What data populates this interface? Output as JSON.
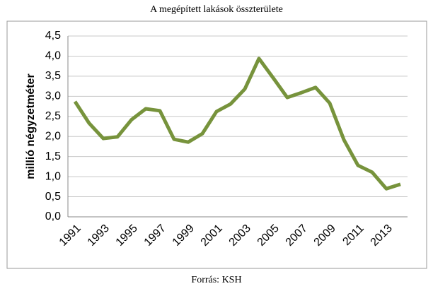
{
  "chart_data": {
    "type": "line",
    "title": "A megépített lakások összterülete",
    "y_label": "millió négyzetméter",
    "source": "Forrás: KSH",
    "categories": [
      "1991",
      null,
      "1993",
      null,
      "1995",
      null,
      "1997",
      null,
      "1999",
      null,
      "2001",
      null,
      "2003",
      null,
      "2005",
      null,
      "2007",
      null,
      "2009",
      null,
      "2011",
      null,
      "2013",
      null
    ],
    "series": [
      {
        "name": "A megépített lakások összterülete",
        "color": "#77933c",
        "values": [
          2.87,
          2.33,
          1.95,
          1.99,
          2.42,
          2.69,
          2.64,
          1.93,
          1.86,
          2.07,
          2.62,
          2.81,
          3.18,
          3.94,
          3.46,
          2.97,
          3.09,
          3.22,
          2.83,
          1.92,
          1.28,
          1.11,
          0.7,
          0.81
        ]
      }
    ],
    "ylim": [
      0,
      4.5
    ],
    "yticks": [
      {
        "value": 0,
        "label": "0,0"
      },
      {
        "value": 0.5,
        "label": "0,5"
      },
      {
        "value": 1,
        "label": "1,0"
      },
      {
        "value": 1.5,
        "label": "1,5"
      },
      {
        "value": 2,
        "label": "2,0"
      },
      {
        "value": 2.5,
        "label": "2,5"
      },
      {
        "value": 3,
        "label": "3,0"
      },
      {
        "value": 3.5,
        "label": "3,5"
      },
      {
        "value": 4,
        "label": "4,0"
      },
      {
        "value": 4.5,
        "label": "4,5"
      }
    ],
    "grid": true
  }
}
